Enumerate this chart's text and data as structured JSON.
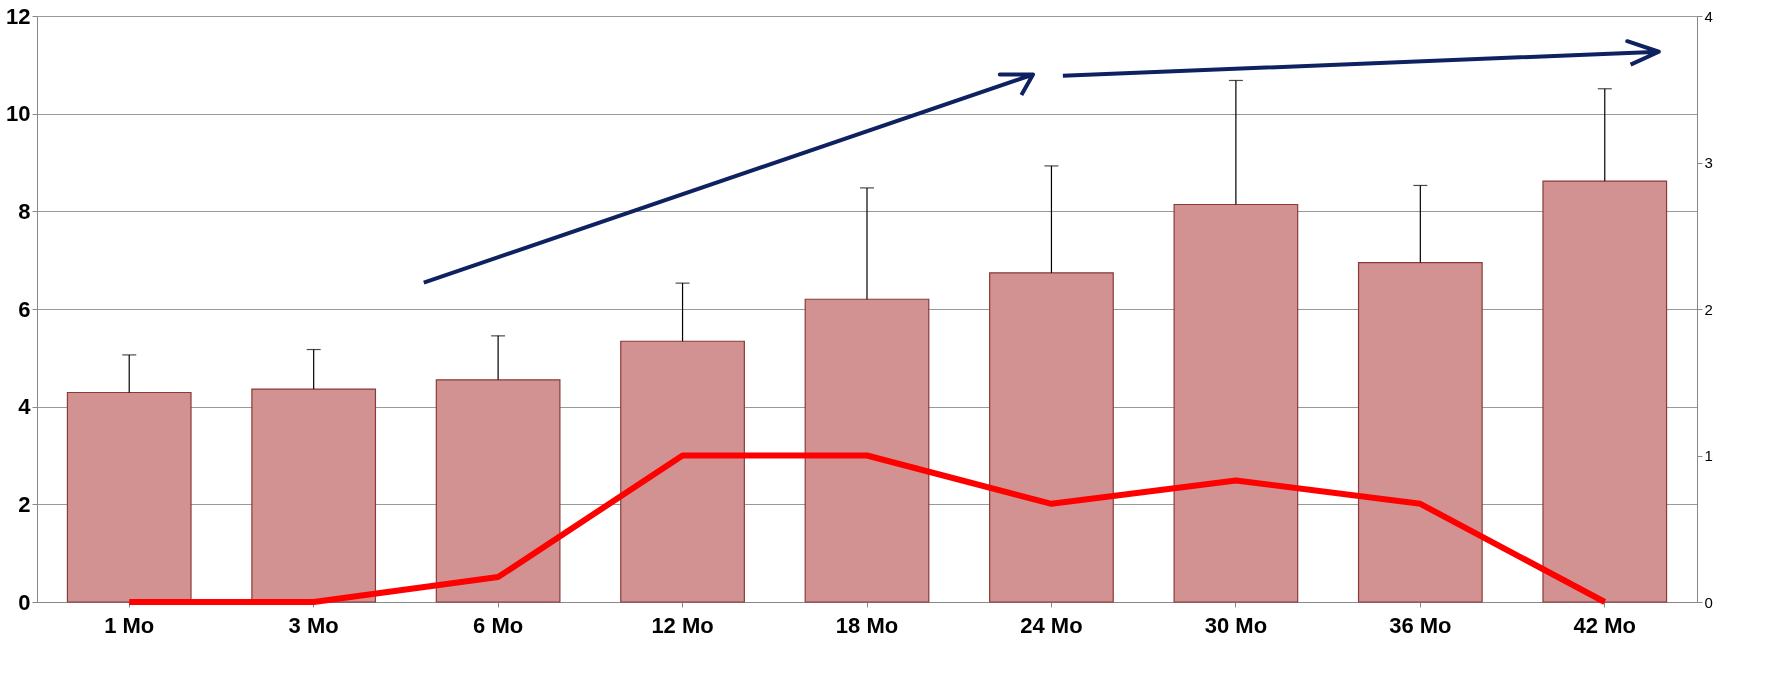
{
  "chart_data": {
    "type": "bar",
    "categories": [
      "1 Mo",
      "3 Mo",
      "6 Mo",
      "12 Mo",
      "18 Mo",
      "24 Mo",
      "30 Mo",
      "36 Mo",
      "42 Mo"
    ],
    "series": [
      {
        "color": "#d39292",
        "values": [
          4.29,
          4.36,
          4.55,
          5.34,
          6.2,
          6.74,
          8.14,
          6.95,
          8.62
        ],
        "errors": [
          [
            4.29,
            5.06
          ],
          [
            4.36,
            5.17
          ],
          [
            4.55,
            5.45
          ],
          [
            5.34,
            6.53
          ],
          [
            6.2,
            8.48
          ],
          [
            6.74,
            8.93
          ],
          [
            8.14,
            10.68
          ],
          [
            6.95,
            8.53
          ],
          [
            8.62,
            10.51
          ]
        ]
      },
      {
        "type": "line",
        "axis": "y2",
        "color": "#ff0000",
        "values": [
          0,
          0,
          0.17,
          1,
          1,
          0.67,
          0.83,
          0.67,
          0
        ]
      }
    ],
    "ylim": [
      0,
      12
    ],
    "yticks": [
      0,
      2,
      4,
      6,
      8,
      10,
      12
    ],
    "y2lim": [
      0,
      4
    ],
    "y2ticks": [
      0,
      1,
      2,
      3,
      4
    ],
    "grid": "y",
    "line_style": "solid",
    "marker": "none"
  }
}
